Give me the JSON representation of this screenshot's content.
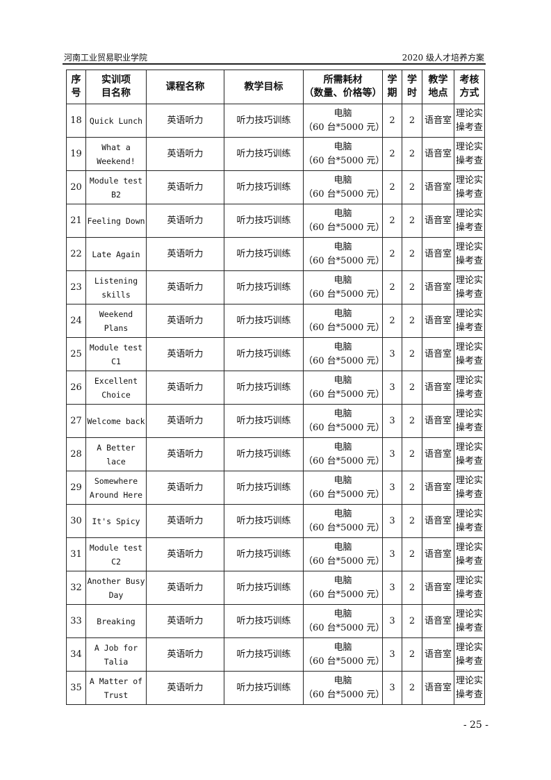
{
  "header": {
    "left": "河南工业贸易职业学院",
    "right": "2020 级人才培养方案"
  },
  "table": {
    "columns": [
      "序\n号",
      "实训项\n目名称",
      "课程名称",
      "教学目标",
      "所需耗材\n（数量、价格等）",
      "学\n期",
      "学\n时",
      "教学\n地点",
      "考核\n方式"
    ],
    "rows": [
      {
        "no": "18",
        "project": "Quick Lunch",
        "course": "英语听力",
        "goal": "听力技巧训练",
        "materials": "电脑\n（60 台*5000 元）",
        "term": "2",
        "hours": "2",
        "place": "语音室",
        "assess": "理论实\n操考查"
      },
      {
        "no": "19",
        "project": "What a\nWeekend!",
        "course": "英语听力",
        "goal": "听力技巧训练",
        "materials": "电脑\n（60 台*5000 元）",
        "term": "2",
        "hours": "2",
        "place": "语音室",
        "assess": "理论实\n操考查"
      },
      {
        "no": "20",
        "project": "Module test\nB2",
        "course": "英语听力",
        "goal": "听力技巧训练",
        "materials": "电脑\n（60 台*5000 元）",
        "term": "2",
        "hours": "2",
        "place": "语音室",
        "assess": "理论实\n操考查"
      },
      {
        "no": "21",
        "project": "Feeling Down",
        "course": "英语听力",
        "goal": "听力技巧训练",
        "materials": "电脑\n（60 台*5000 元）",
        "term": "2",
        "hours": "2",
        "place": "语音室",
        "assess": "理论实\n操考查"
      },
      {
        "no": "22",
        "project": "Late Again",
        "course": "英语听力",
        "goal": "听力技巧训练",
        "materials": "电脑\n（60 台*5000 元）",
        "term": "2",
        "hours": "2",
        "place": "语音室",
        "assess": "理论实\n操考查"
      },
      {
        "no": "23",
        "project": "Listening\nskills",
        "course": "英语听力",
        "goal": "听力技巧训练",
        "materials": "电脑\n（60 台*5000 元）",
        "term": "2",
        "hours": "2",
        "place": "语音室",
        "assess": "理论实\n操考查"
      },
      {
        "no": "24",
        "project": "Weekend\nPlans",
        "course": "英语听力",
        "goal": "听力技巧训练",
        "materials": "电脑\n（60 台*5000 元）",
        "term": "2",
        "hours": "2",
        "place": "语音室",
        "assess": "理论实\n操考查"
      },
      {
        "no": "25",
        "project": "Module test\nC1",
        "course": "英语听力",
        "goal": "听力技巧训练",
        "materials": "电脑\n（60 台*5000 元）",
        "term": "3",
        "hours": "2",
        "place": "语音室",
        "assess": "理论实\n操考查"
      },
      {
        "no": "26",
        "project": "Excellent\nChoice",
        "course": "英语听力",
        "goal": "听力技巧训练",
        "materials": "电脑\n（60 台*5000 元）",
        "term": "3",
        "hours": "2",
        "place": "语音室",
        "assess": "理论实\n操考查"
      },
      {
        "no": "27",
        "project": "Welcome back",
        "course": "英语听力",
        "goal": "听力技巧训练",
        "materials": "电脑\n（60 台*5000 元）",
        "term": "3",
        "hours": "2",
        "place": "语音室",
        "assess": "理论实\n操考查"
      },
      {
        "no": "28",
        "project": "A Better lace",
        "course": "英语听力",
        "goal": "听力技巧训练",
        "materials": "电脑\n（60 台*5000 元）",
        "term": "3",
        "hours": "2",
        "place": "语音室",
        "assess": "理论实\n操考查"
      },
      {
        "no": "29",
        "project": "Somewhere\nAround Here",
        "course": "英语听力",
        "goal": "听力技巧训练",
        "materials": "电脑\n（60 台*5000 元）",
        "term": "3",
        "hours": "2",
        "place": "语音室",
        "assess": "理论实\n操考查"
      },
      {
        "no": "30",
        "project": "It's Spicy",
        "course": "英语听力",
        "goal": "听力技巧训练",
        "materials": "电脑\n（60 台*5000 元）",
        "term": "3",
        "hours": "2",
        "place": "语音室",
        "assess": "理论实\n操考查"
      },
      {
        "no": "31",
        "project": "Module test\nC2",
        "course": "英语听力",
        "goal": "听力技巧训练",
        "materials": "电脑\n（60 台*5000 元）",
        "term": "3",
        "hours": "2",
        "place": "语音室",
        "assess": "理论实\n操考查"
      },
      {
        "no": "32",
        "project": "Another Busy\nDay",
        "course": "英语听力",
        "goal": "听力技巧训练",
        "materials": "电脑\n（60 台*5000 元）",
        "term": "3",
        "hours": "2",
        "place": "语音室",
        "assess": "理论实\n操考查"
      },
      {
        "no": "33",
        "project": "Breaking",
        "course": "英语听力",
        "goal": "听力技巧训练",
        "materials": "电脑\n（60 台*5000 元）",
        "term": "3",
        "hours": "2",
        "place": "语音室",
        "assess": "理论实\n操考查"
      },
      {
        "no": "34",
        "project": "A Job for\nTalia",
        "course": "英语听力",
        "goal": "听力技巧训练",
        "materials": "电脑\n（60 台*5000 元）",
        "term": "3",
        "hours": "2",
        "place": "语音室",
        "assess": "理论实\n操考查"
      },
      {
        "no": "35",
        "project": "A Matter of\nTrust",
        "course": "英语听力",
        "goal": "听力技巧训练",
        "materials": "电脑\n（60 台*5000 元）",
        "term": "3",
        "hours": "2",
        "place": "语音室",
        "assess": "理论实\n操考查"
      }
    ]
  },
  "footer": {
    "page_number": "- 25 -"
  }
}
